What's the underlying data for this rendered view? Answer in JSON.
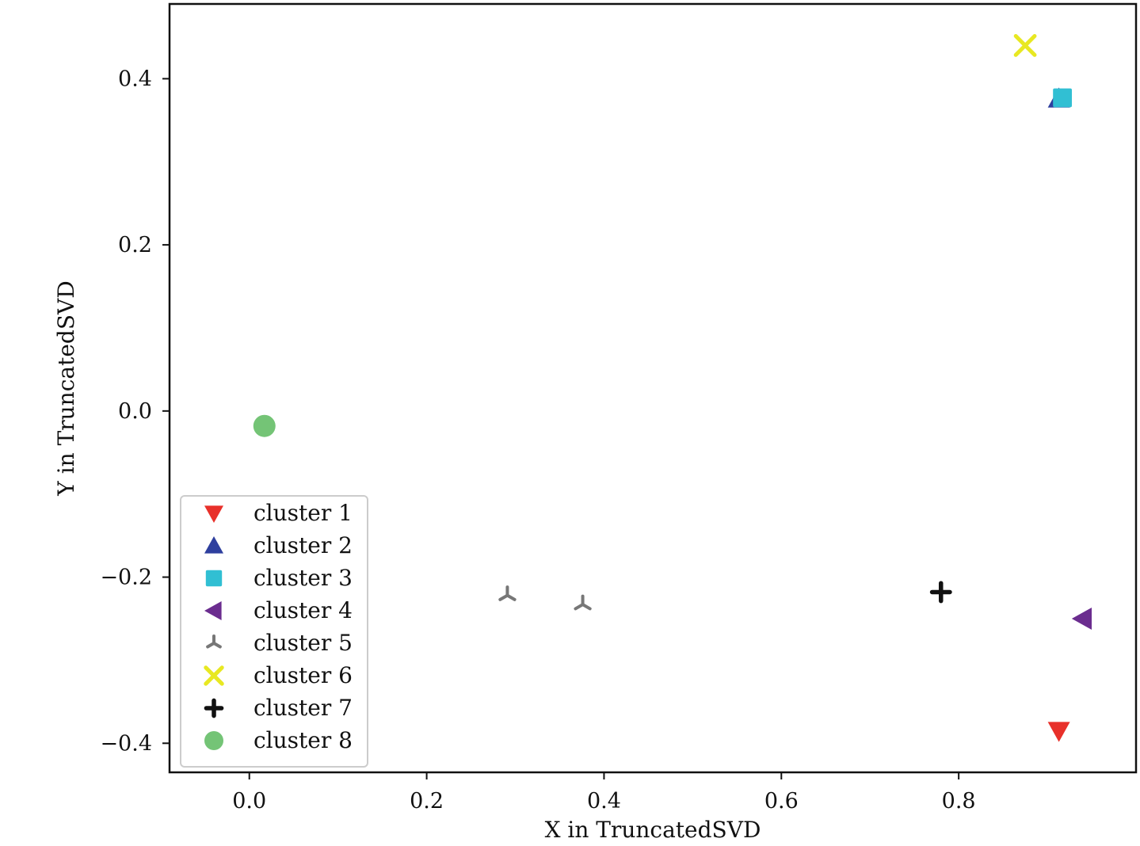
{
  "chart_data": {
    "type": "scatter",
    "title": "",
    "xlabel": "X in TruncatedSVD",
    "ylabel": "Y in TruncatedSVD",
    "xlim": [
      -0.09,
      1.0
    ],
    "ylim": [
      -0.435,
      0.49
    ],
    "x_ticks": [
      0.0,
      0.2,
      0.4,
      0.6,
      0.8
    ],
    "x_tick_labels": [
      "0.0",
      "0.2",
      "0.4",
      "0.6",
      "0.8"
    ],
    "y_ticks": [
      -0.4,
      -0.2,
      0.0,
      0.2,
      0.4
    ],
    "y_tick_labels": [
      "−0.4",
      "−0.2",
      "0.0",
      "0.2",
      "0.4"
    ],
    "grid": false,
    "legend_position": "lower-left",
    "series": [
      {
        "name": "cluster 1",
        "marker": "triangle-down",
        "color": "#e8302a",
        "points": [
          [
            0.913,
            -0.385
          ]
        ]
      },
      {
        "name": "cluster 2",
        "marker": "triangle-up",
        "color": "#2e3f9e",
        "points": [
          [
            0.913,
            0.376
          ]
        ]
      },
      {
        "name": "cluster 3",
        "marker": "square",
        "color": "#31bfd3",
        "points": [
          [
            0.917,
            0.377
          ]
        ]
      },
      {
        "name": "cluster 4",
        "marker": "triangle-left",
        "color": "#6b2d8f",
        "points": [
          [
            0.94,
            -0.25
          ]
        ]
      },
      {
        "name": "cluster 5",
        "marker": "tri-down",
        "color": "#777777",
        "points": [
          [
            0.291,
            -0.222
          ],
          [
            0.376,
            -0.233
          ]
        ]
      },
      {
        "name": "cluster 6",
        "marker": "x",
        "color": "#e8e822",
        "points": [
          [
            0.875,
            0.44
          ]
        ]
      },
      {
        "name": "cluster 7",
        "marker": "plus",
        "color": "#111111",
        "points": [
          [
            0.78,
            -0.218
          ]
        ]
      },
      {
        "name": "cluster 8",
        "marker": "circle",
        "color": "#74c476",
        "points": [
          [
            0.017,
            -0.018
          ]
        ]
      }
    ]
  }
}
